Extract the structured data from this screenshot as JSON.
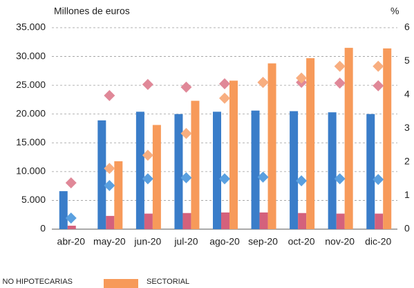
{
  "chart_data": {
    "type": "bar",
    "y_label": "Millones de euros",
    "y2_label": "%",
    "categories": [
      "abr-20",
      "may-20",
      "jun-20",
      "jul-20",
      "ago-20",
      "sep-20",
      "oct-20",
      "nov-20",
      "dic-20"
    ],
    "series": [
      {
        "color": "#3a7dc9",
        "values": [
          6600,
          18900,
          20400,
          20000,
          20400,
          20600,
          20500,
          20300,
          20000
        ]
      },
      {
        "name": "NO HIPOTECARIAS",
        "color": "#d4617c",
        "values": [
          600,
          2300,
          2700,
          2800,
          2900,
          2900,
          2800,
          2700,
          2700
        ]
      },
      {
        "name": "SECTORIAL",
        "color": "#f79a5a",
        "values": [
          null,
          11800,
          18100,
          22300,
          25800,
          28800,
          29700,
          31500,
          31400
        ]
      },
      {
        "type": "scatter",
        "axis": "y2",
        "color": "#e08898",
        "values": [
          1.38,
          3.98,
          4.31,
          4.23,
          4.33,
          4.37,
          4.37,
          4.35,
          4.27
        ]
      },
      {
        "type": "scatter",
        "axis": "y2",
        "color": "#5aa0e0",
        "values": [
          0.33,
          1.3,
          1.5,
          1.53,
          1.5,
          1.55,
          1.44,
          1.5,
          1.48
        ]
      },
      {
        "type": "scatter",
        "axis": "y2",
        "color": "#f8ae80",
        "values": [
          null,
          1.81,
          2.2,
          2.85,
          3.9,
          4.37,
          4.5,
          4.85,
          4.85
        ]
      }
    ],
    "ylim": [
      0,
      35000
    ],
    "yticks": [
      0,
      {
        "value": 5000,
        "label": "5.000"
      },
      {
        "value": 10000,
        "label": "10.000"
      },
      {
        "value": 15000,
        "label": "15.000"
      },
      {
        "value": 20000,
        "label": "20.000"
      },
      {
        "value": 25000,
        "label": "25.000"
      },
      {
        "value": 30000,
        "label": "30.000"
      },
      {
        "value": 35000,
        "label": "35.000"
      }
    ],
    "y2lim": [
      0,
      6
    ],
    "y2ticks": [
      0,
      1,
      2,
      3,
      4,
      5,
      6
    ],
    "grid": true
  }
}
